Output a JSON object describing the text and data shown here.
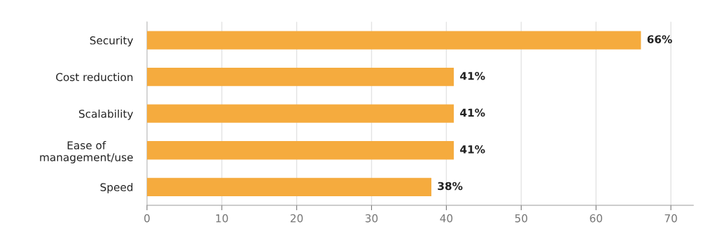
{
  "chart_data": {
    "type": "bar",
    "orientation": "horizontal",
    "categories": [
      "Security",
      "Cost reduction",
      "Scalability",
      "Ease of\nmanagement/use",
      "Speed"
    ],
    "values": [
      66,
      41,
      41,
      41,
      38
    ],
    "value_labels": [
      "66%",
      "41%",
      "41%",
      "41%",
      "38%"
    ],
    "color": "#f5ab3e",
    "xlim": [
      0,
      73
    ],
    "xticks": [
      0,
      10,
      20,
      30,
      40,
      50,
      60,
      70
    ],
    "grid": "x"
  }
}
